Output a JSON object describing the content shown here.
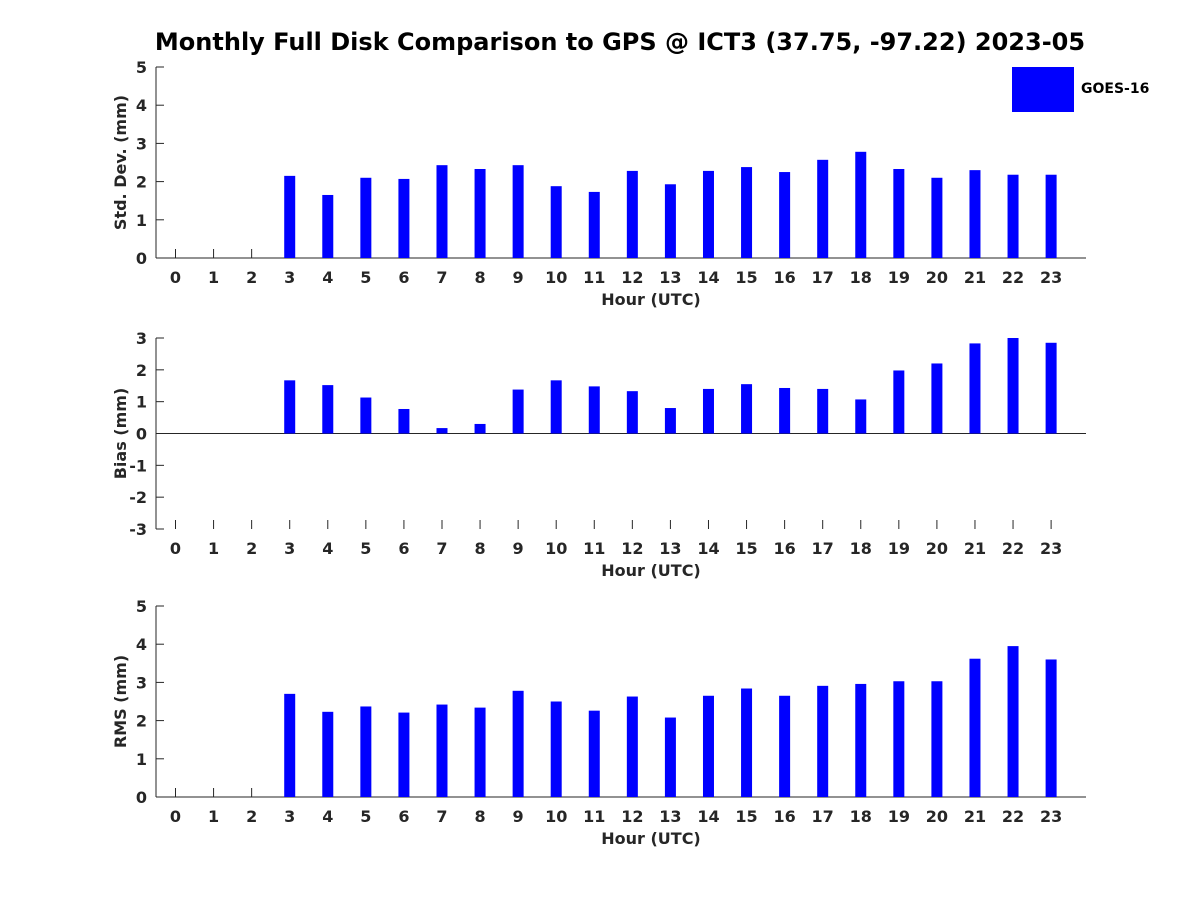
{
  "title": "Monthly Full Disk Comparison to GPS @ ICT3 (37.75, -97.22) 2023-05",
  "legend": {
    "label": "GOES-16",
    "color": "#0000ff"
  },
  "chart_data": [
    {
      "type": "bar",
      "xlabel": "Hour (UTC)",
      "ylabel": "Std. Dev. (mm)",
      "ylim": [
        0,
        5
      ],
      "yticks": [
        0,
        1,
        2,
        3,
        4,
        5
      ],
      "categories": [
        "0",
        "1",
        "2",
        "3",
        "4",
        "5",
        "6",
        "7",
        "8",
        "9",
        "10",
        "11",
        "12",
        "13",
        "14",
        "15",
        "16",
        "17",
        "18",
        "19",
        "20",
        "21",
        "22",
        "23"
      ],
      "series": [
        {
          "name": "GOES-16",
          "values": [
            null,
            null,
            null,
            2.15,
            1.65,
            2.1,
            2.07,
            2.43,
            2.33,
            2.43,
            1.88,
            1.73,
            2.28,
            1.93,
            2.28,
            2.38,
            2.25,
            2.57,
            2.78,
            2.33,
            2.1,
            2.3,
            2.18,
            2.18
          ]
        }
      ],
      "grid": false
    },
    {
      "type": "bar",
      "xlabel": "Hour (UTC)",
      "ylabel": "Bias (mm)",
      "ylim": [
        -3,
        3
      ],
      "yticks": [
        -3,
        -2,
        -1,
        0,
        1,
        2,
        3
      ],
      "categories": [
        "0",
        "1",
        "2",
        "3",
        "4",
        "5",
        "6",
        "7",
        "8",
        "9",
        "10",
        "11",
        "12",
        "13",
        "14",
        "15",
        "16",
        "17",
        "18",
        "19",
        "20",
        "21",
        "22",
        "23"
      ],
      "series": [
        {
          "name": "GOES-16",
          "values": [
            null,
            null,
            null,
            1.67,
            1.52,
            1.13,
            0.77,
            0.17,
            0.3,
            1.38,
            1.67,
            1.48,
            1.33,
            0.8,
            1.4,
            1.55,
            1.43,
            1.4,
            1.07,
            1.98,
            2.2,
            2.83,
            3.0,
            2.85
          ]
        }
      ],
      "grid": false
    },
    {
      "type": "bar",
      "xlabel": "Hour (UTC)",
      "ylabel": "RMS (mm)",
      "ylim": [
        0,
        5
      ],
      "yticks": [
        0,
        1,
        2,
        3,
        4,
        5
      ],
      "categories": [
        "0",
        "1",
        "2",
        "3",
        "4",
        "5",
        "6",
        "7",
        "8",
        "9",
        "10",
        "11",
        "12",
        "13",
        "14",
        "15",
        "16",
        "17",
        "18",
        "19",
        "20",
        "21",
        "22",
        "23"
      ],
      "series": [
        {
          "name": "GOES-16",
          "values": [
            null,
            null,
            null,
            2.7,
            2.23,
            2.37,
            2.21,
            2.42,
            2.34,
            2.78,
            2.5,
            2.26,
            2.63,
            2.08,
            2.65,
            2.84,
            2.65,
            2.91,
            2.96,
            3.03,
            3.03,
            3.62,
            3.95,
            3.6
          ]
        }
      ],
      "grid": false,
      "legend_position": "top-right"
    }
  ]
}
